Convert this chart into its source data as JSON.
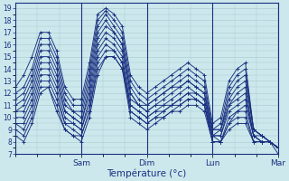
{
  "title": "",
  "xlabel": "Température (°c)",
  "ylabel": "",
  "bg_color": "#cce8ec",
  "grid_color": "#a8c8d0",
  "line_color": "#1a3080",
  "ylim": [
    7,
    19
  ],
  "yticks": [
    7,
    8,
    9,
    10,
    11,
    12,
    13,
    14,
    15,
    16,
    17,
    18,
    19
  ],
  "day_positions": [
    0.25,
    0.5,
    0.75,
    1.0
  ],
  "day_labels": [
    "Sam",
    "Dim",
    "Lun",
    "Mar"
  ],
  "n_points": 33,
  "series": [
    [
      12.5,
      13.5,
      15.0,
      17.0,
      17.0,
      15.5,
      12.5,
      11.5,
      11.5,
      14.5,
      18.5,
      19.0,
      18.5,
      17.5,
      13.5,
      12.5,
      12.0,
      12.5,
      13.0,
      13.5,
      14.0,
      14.5,
      14.0,
      13.5,
      9.5,
      10.0,
      13.0,
      14.0,
      14.5,
      9.0,
      8.5,
      8.0,
      7.5
    ],
    [
      12.0,
      12.5,
      14.0,
      16.5,
      16.5,
      15.0,
      12.0,
      11.0,
      11.0,
      14.0,
      18.0,
      18.8,
      18.0,
      17.0,
      13.0,
      12.0,
      11.5,
      12.0,
      12.5,
      13.0,
      13.5,
      14.0,
      13.5,
      13.0,
      9.0,
      9.5,
      12.5,
      13.5,
      14.0,
      9.0,
      8.5,
      8.0,
      7.5
    ],
    [
      11.5,
      12.0,
      13.5,
      16.0,
      16.0,
      14.5,
      11.5,
      10.5,
      10.5,
      13.5,
      17.5,
      18.5,
      17.5,
      16.5,
      12.5,
      11.5,
      11.0,
      11.5,
      12.0,
      12.5,
      13.0,
      13.5,
      13.0,
      12.5,
      9.0,
      9.0,
      12.0,
      13.0,
      13.5,
      9.0,
      8.5,
      8.0,
      7.5
    ],
    [
      11.0,
      11.5,
      13.0,
      15.5,
      15.5,
      14.0,
      11.0,
      10.5,
      10.0,
      13.0,
      17.0,
      18.0,
      17.0,
      16.0,
      12.0,
      11.0,
      11.0,
      11.5,
      12.0,
      12.5,
      12.5,
      13.0,
      12.5,
      12.0,
      9.0,
      9.0,
      11.5,
      12.5,
      13.0,
      9.0,
      8.5,
      8.0,
      7.5
    ],
    [
      10.5,
      11.0,
      12.5,
      15.0,
      15.0,
      13.5,
      10.5,
      10.0,
      9.5,
      12.5,
      16.5,
      17.5,
      17.0,
      16.0,
      12.0,
      11.0,
      10.5,
      11.0,
      11.5,
      12.0,
      12.5,
      13.0,
      12.5,
      12.0,
      8.5,
      9.0,
      11.0,
      12.0,
      12.5,
      8.5,
      8.5,
      8.0,
      7.5
    ],
    [
      10.5,
      10.5,
      12.0,
      14.5,
      14.5,
      13.0,
      10.5,
      10.0,
      9.5,
      12.0,
      16.0,
      17.0,
      16.5,
      15.5,
      11.5,
      11.0,
      10.5,
      11.0,
      11.0,
      11.5,
      12.0,
      12.5,
      12.0,
      11.5,
      8.5,
      8.5,
      11.0,
      11.5,
      12.0,
      8.5,
      8.0,
      8.0,
      7.5
    ],
    [
      10.0,
      10.0,
      11.5,
      14.0,
      14.0,
      12.5,
      10.0,
      9.5,
      9.0,
      11.5,
      15.5,
      16.5,
      16.0,
      15.0,
      11.0,
      10.5,
      10.0,
      10.5,
      11.0,
      11.0,
      11.5,
      12.0,
      12.0,
      11.5,
      8.5,
      8.5,
      10.5,
      11.0,
      11.5,
      8.5,
      8.0,
      8.0,
      7.5
    ],
    [
      9.5,
      9.5,
      11.0,
      13.5,
      13.5,
      12.0,
      9.5,
      9.5,
      9.0,
      11.0,
      15.0,
      16.0,
      15.5,
      14.5,
      11.0,
      10.5,
      10.0,
      10.5,
      10.5,
      11.0,
      11.5,
      12.0,
      11.5,
      11.0,
      8.5,
      8.0,
      10.0,
      10.5,
      11.0,
      8.5,
      8.0,
      8.0,
      7.5
    ],
    [
      9.5,
      9.0,
      10.5,
      13.0,
      13.0,
      11.5,
      9.5,
      9.0,
      8.5,
      10.5,
      14.5,
      15.5,
      15.5,
      14.5,
      10.5,
      10.0,
      9.5,
      10.0,
      10.5,
      11.0,
      11.0,
      11.5,
      11.5,
      11.0,
      8.0,
      8.0,
      9.5,
      10.5,
      10.5,
      8.0,
      8.0,
      8.0,
      7.5
    ],
    [
      9.0,
      8.5,
      10.0,
      12.5,
      12.5,
      11.0,
      9.0,
      8.5,
      8.5,
      10.5,
      14.0,
      15.0,
      15.0,
      14.0,
      10.5,
      10.0,
      9.5,
      10.0,
      10.0,
      10.5,
      11.0,
      11.5,
      11.5,
      11.0,
      8.0,
      8.0,
      9.5,
      10.0,
      10.0,
      8.0,
      8.0,
      8.0,
      7.5
    ],
    [
      8.5,
      8.0,
      9.5,
      12.0,
      12.5,
      10.5,
      9.0,
      8.5,
      8.0,
      10.0,
      13.5,
      15.0,
      15.0,
      14.0,
      10.0,
      9.5,
      9.0,
      9.5,
      10.0,
      10.5,
      10.5,
      11.0,
      11.0,
      10.5,
      8.0,
      8.0,
      9.0,
      9.5,
      9.5,
      8.0,
      8.0,
      8.0,
      7.0
    ]
  ]
}
